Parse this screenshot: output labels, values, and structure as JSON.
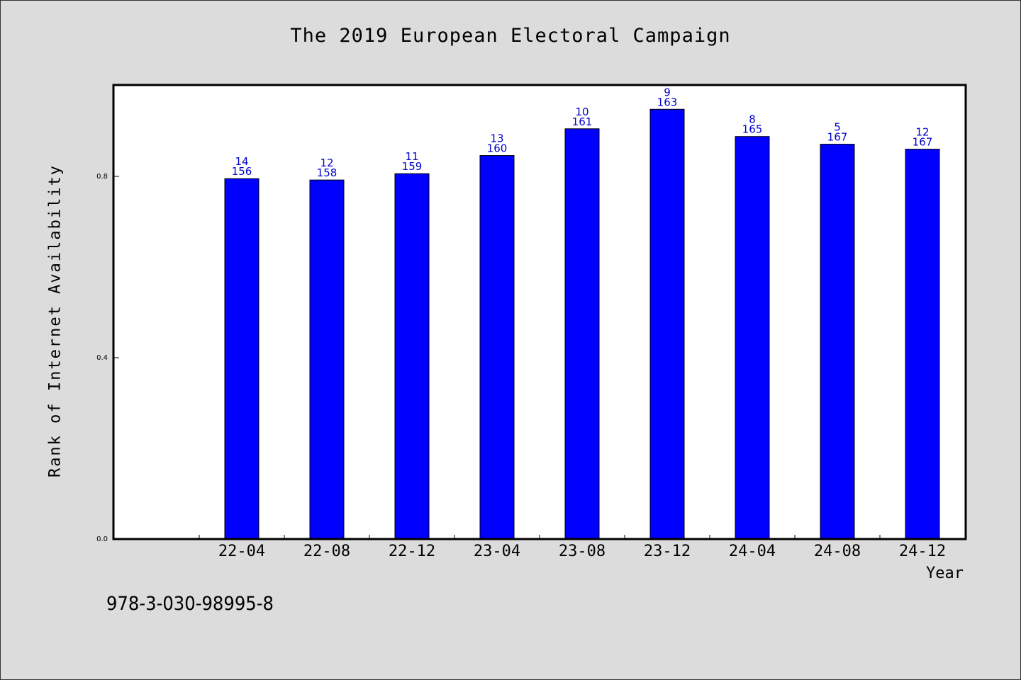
{
  "chart_data": {
    "type": "bar",
    "title": "The 2019 European Electoral Campaign",
    "xlabel": "Year",
    "ylabel": "Rank of Internet Availability",
    "categories": [
      "22-04",
      "22-08",
      "22-12",
      "23-04",
      "23-08",
      "23-12",
      "24-04",
      "24-08",
      "24-12"
    ],
    "values": [
      0.795,
      0.792,
      0.806,
      0.846,
      0.905,
      0.948,
      0.888,
      0.871,
      0.86
    ],
    "label_top": [
      "14",
      "12",
      "11",
      "13",
      "10",
      "9",
      "8",
      "5",
      "12"
    ],
    "label_bottom": [
      "156",
      "158",
      "159",
      "160",
      "161",
      "163",
      "165",
      "167",
      "167"
    ],
    "yticks": [
      "0.0",
      "0.4",
      "0.8"
    ],
    "ylim": [
      0,
      1.0
    ],
    "grid": false,
    "bar_color": "#0000ff",
    "label_color": "#0000cc"
  },
  "footer": {
    "isbn": "978-3-030-98995-8"
  }
}
